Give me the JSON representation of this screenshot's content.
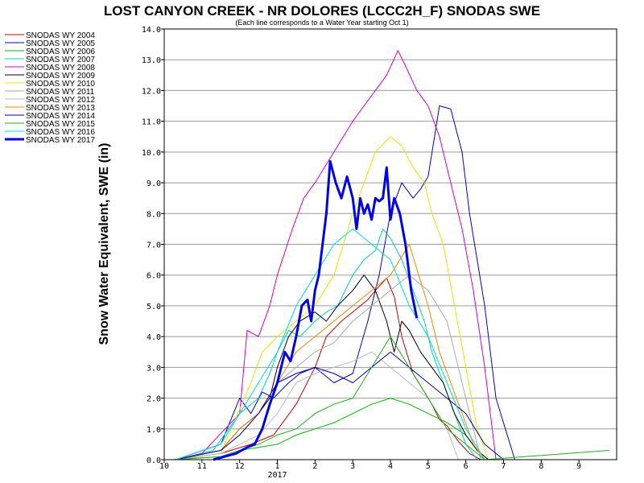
{
  "chart_data": {
    "type": "line",
    "title": "LOST CANYON CREEK - NR DOLORES (LCCC2H_F) SNODAS SWE",
    "subtitle": "(Each line corresponds to a Water Year starting Oct 1)",
    "ylabel": "Snow Water Equivalent, SWE (in)",
    "xlabel": "",
    "x_tick_labels": [
      "10",
      "11",
      "12",
      "1",
      "2",
      "3",
      "4",
      "5",
      "6",
      "7",
      "8",
      "9"
    ],
    "x_year_label": "2017",
    "ylim": [
      0,
      14
    ],
    "y_ticks": [
      "0.0",
      "1.0",
      "2.0",
      "3.0",
      "4.0",
      "5.0",
      "6.0",
      "7.0",
      "8.0",
      "9.0",
      "10.0",
      "11.0",
      "12.0",
      "13.0",
      "14.0"
    ],
    "grid": true,
    "legend_position": "left",
    "x_unit": "month index from Oct 1 (0 = Oct 1, 12 = Oct 1 next year)",
    "series": [
      {
        "name": "SNODAS WY 2004",
        "color": "#cc0000",
        "x": [
          0.3,
          1.5,
          2.3,
          2.9,
          3.5,
          4.0,
          4.3,
          4.7,
          5.0,
          5.4,
          5.6,
          5.9,
          6.1,
          6.3,
          6.6,
          6.9,
          7.1,
          7.3,
          7.5,
          7.8,
          8.1,
          8.4
        ],
        "y": [
          0,
          0.2,
          0.5,
          0.8,
          1.8,
          3.0,
          4.0,
          4.5,
          4.8,
          5.2,
          5.5,
          5.9,
          5.3,
          4.0,
          2.8,
          2.2,
          1.8,
          1.3,
          1.1,
          0.6,
          0.2,
          0
        ]
      },
      {
        "name": "SNODAS WY 2005",
        "color": "#0000cc",
        "x": [
          0.3,
          1.5,
          2.0,
          2.3,
          2.6,
          2.9,
          3.3,
          3.6,
          4.0,
          4.5,
          5.0,
          5.4,
          5.7,
          6.0,
          6.3,
          6.6,
          6.8,
          7.0,
          7.3,
          7.6,
          7.9,
          8.1,
          8.5,
          8.8,
          9.3
        ],
        "y": [
          0,
          0.5,
          2.0,
          1.5,
          2.2,
          2.0,
          2.5,
          2.8,
          3.0,
          2.5,
          2.8,
          4.5,
          6.0,
          8.0,
          9.0,
          8.5,
          8.8,
          9.2,
          11.5,
          11.4,
          10.0,
          8.0,
          5.0,
          2.0,
          0
        ]
      },
      {
        "name": "SNODAS WY 2006",
        "color": "#00bb00",
        "x": [
          0.2,
          1.5,
          2.0,
          2.5,
          3.0,
          3.5,
          4.0,
          4.5,
          5.0,
          5.5,
          6.0,
          6.5,
          7.0,
          7.5,
          8.0,
          8.3,
          8.6
        ],
        "y": [
          0,
          0.1,
          0.3,
          0.4,
          0.5,
          0.8,
          1.0,
          1.2,
          1.5,
          1.8,
          2.0,
          1.8,
          1.5,
          1.2,
          0.8,
          0.3,
          0
        ]
      },
      {
        "name": "SNODAS WY 2007",
        "color": "#00cccc",
        "x": [
          0.3,
          1.3,
          2.0,
          2.5,
          2.8,
          3.0,
          3.3,
          3.6,
          4.0,
          4.3,
          4.6,
          5.0,
          5.3,
          5.6,
          5.8,
          6.0,
          6.3,
          6.6,
          6.9,
          7.1,
          7.4,
          7.7,
          8.0,
          8.3
        ],
        "y": [
          0,
          0.3,
          1.5,
          2.0,
          2.8,
          3.5,
          4.2,
          4.0,
          4.5,
          4.8,
          5.0,
          6.0,
          6.5,
          6.8,
          7.5,
          7.2,
          6.5,
          5.5,
          4.5,
          3.5,
          2.5,
          1.5,
          0.5,
          0
        ]
      },
      {
        "name": "SNODAS WY 2008",
        "color": "#cc00cc",
        "x": [
          0.3,
          1.0,
          2.0,
          2.2,
          2.5,
          2.8,
          3.0,
          3.4,
          3.7,
          4.0,
          4.5,
          5.0,
          5.3,
          5.6,
          5.9,
          6.2,
          6.4,
          6.7,
          7.0,
          7.3,
          7.6,
          7.9,
          8.2,
          8.5,
          8.8
        ],
        "y": [
          0,
          0.2,
          1.5,
          4.2,
          4.0,
          5.0,
          6.0,
          7.5,
          8.5,
          9.0,
          10.0,
          11.0,
          11.5,
          12.0,
          12.5,
          13.3,
          12.8,
          12.0,
          11.5,
          10.5,
          9.0,
          7.5,
          5.5,
          3.0,
          0
        ]
      },
      {
        "name": "SNODAS WY 2009",
        "color": "#000000",
        "x": [
          0.3,
          1.5,
          2.0,
          2.5,
          2.8,
          3.0,
          3.3,
          3.6,
          4.0,
          4.3,
          4.6,
          5.0,
          5.3,
          5.6,
          5.9,
          6.1,
          6.3,
          6.5,
          6.8,
          7.1,
          7.4,
          7.7,
          8.0,
          8.3,
          8.6
        ],
        "y": [
          0,
          0.3,
          1.0,
          1.5,
          2.0,
          3.0,
          4.0,
          4.5,
          4.8,
          4.5,
          5.0,
          5.5,
          6.0,
          5.5,
          4.5,
          3.5,
          4.5,
          4.2,
          3.5,
          3.0,
          2.5,
          1.5,
          0.8,
          0.3,
          0
        ]
      },
      {
        "name": "SNODAS WY 2010",
        "color": "#e6e600",
        "x": [
          0.3,
          1.5,
          2.3,
          2.6,
          3.0,
          3.5,
          4.0,
          4.5,
          5.0,
          5.3,
          5.6,
          6.0,
          6.3,
          6.6,
          6.9,
          7.1,
          7.4,
          7.7,
          8.0,
          8.3,
          8.6
        ],
        "y": [
          0,
          0.2,
          2.5,
          3.5,
          4.0,
          4.5,
          5.0,
          6.0,
          8.0,
          9.0,
          10.0,
          10.5,
          10.2,
          9.5,
          9.0,
          8.0,
          7.0,
          5.0,
          3.0,
          1.0,
          0
        ]
      },
      {
        "name": "SNODAS WY 2011",
        "color": "#aaaaaa",
        "x": [
          0.3,
          1.5,
          2.0,
          2.5,
          3.0,
          3.5,
          4.0,
          4.5,
          5.0,
          5.5,
          6.0,
          6.5,
          7.0,
          7.5,
          7.8,
          8.1,
          8.4
        ],
        "y": [
          0,
          0.3,
          0.8,
          1.5,
          2.5,
          3.0,
          3.5,
          3.8,
          4.5,
          5.0,
          5.5,
          6.0,
          5.5,
          4.5,
          3.0,
          1.5,
          0
        ]
      },
      {
        "name": "SNODAS WY 2012",
        "color": "#bbbbbb",
        "x": [
          0.3,
          1.5,
          2.0,
          2.5,
          3.0,
          3.5,
          4.0,
          4.5,
          5.0,
          5.5,
          6.0,
          6.5,
          7.0,
          7.5,
          7.8
        ],
        "y": [
          0,
          0.2,
          0.5,
          0.8,
          1.5,
          2.5,
          2.8,
          3.0,
          3.2,
          3.5,
          3.0,
          2.5,
          2.0,
          1.0,
          0
        ]
      },
      {
        "name": "SNODAS WY 2013",
        "color": "#ee8800",
        "x": [
          0.3,
          1.5,
          2.0,
          2.5,
          3.0,
          3.5,
          4.0,
          4.5,
          5.0,
          5.5,
          6.0,
          6.5,
          7.0,
          7.3,
          7.6,
          7.9,
          8.2,
          8.5
        ],
        "y": [
          0,
          0.3,
          1.0,
          1.5,
          2.5,
          3.5,
          4.0,
          4.5,
          5.0,
          5.5,
          6.0,
          7.0,
          5.0,
          3.5,
          2.5,
          1.5,
          0.5,
          0
        ]
      },
      {
        "name": "SNODAS WY 2014",
        "color": "#0000aa",
        "x": [
          0.3,
          1.5,
          2.0,
          2.5,
          3.0,
          3.5,
          4.0,
          4.5,
          5.0,
          5.5,
          6.0,
          6.5,
          7.0,
          7.5,
          8.0,
          8.5,
          9.0
        ],
        "y": [
          0,
          0.3,
          0.8,
          1.5,
          2.5,
          2.8,
          3.0,
          2.8,
          2.5,
          3.0,
          3.5,
          3.0,
          2.5,
          2.0,
          1.5,
          0.5,
          0
        ]
      },
      {
        "name": "SNODAS WY 2015",
        "color": "#22aa22",
        "x": [
          0.3,
          1.5,
          2.0,
          2.5,
          3.0,
          3.5,
          4.0,
          4.5,
          5.0,
          5.5,
          6.0,
          6.5,
          7.0,
          7.5,
          8.0,
          8.5,
          11.8
        ],
        "y": [
          0,
          0.1,
          0.3,
          0.5,
          0.8,
          1.0,
          1.5,
          1.8,
          2.0,
          3.0,
          4.0,
          3.0,
          2.0,
          1.0,
          0.5,
          0,
          0.3
        ]
      },
      {
        "name": "SNODAS WY 2016",
        "color": "#00dddd",
        "x": [
          0.3,
          1.5,
          2.0,
          2.5,
          3.0,
          3.5,
          4.0,
          4.5,
          5.0,
          5.5,
          6.0,
          6.5,
          7.0,
          7.5,
          8.0,
          8.5
        ],
        "y": [
          0,
          0.5,
          1.5,
          2.5,
          3.5,
          5.0,
          6.0,
          7.0,
          7.5,
          7.0,
          6.5,
          5.0,
          4.0,
          2.5,
          1.0,
          0
        ]
      },
      {
        "name": "SNODAS WY 2017",
        "color": "#0000ee",
        "bold": true,
        "x": [
          1.3,
          1.6,
          1.9,
          2.2,
          2.4,
          2.6,
          2.8,
          3.0,
          3.2,
          3.35,
          3.5,
          3.65,
          3.8,
          3.9,
          4.0,
          4.1,
          4.2,
          4.3,
          4.4,
          4.55,
          4.7,
          4.85,
          5.0,
          5.1,
          5.2,
          5.3,
          5.4,
          5.5,
          5.6,
          5.7,
          5.8,
          5.9,
          6.0,
          6.1,
          6.25,
          6.4,
          6.55,
          6.7
        ],
        "y": [
          0,
          0.1,
          0.2,
          0.4,
          0.5,
          1.0,
          1.8,
          2.5,
          3.5,
          3.2,
          4.0,
          5.0,
          5.2,
          4.5,
          5.5,
          6.0,
          7.0,
          8.0,
          9.7,
          9.0,
          8.5,
          9.2,
          8.5,
          7.5,
          8.5,
          8.0,
          8.3,
          7.8,
          8.5,
          8.4,
          8.5,
          9.5,
          7.8,
          8.5,
          8.0,
          7.0,
          5.5,
          4.6
        ]
      }
    ]
  }
}
